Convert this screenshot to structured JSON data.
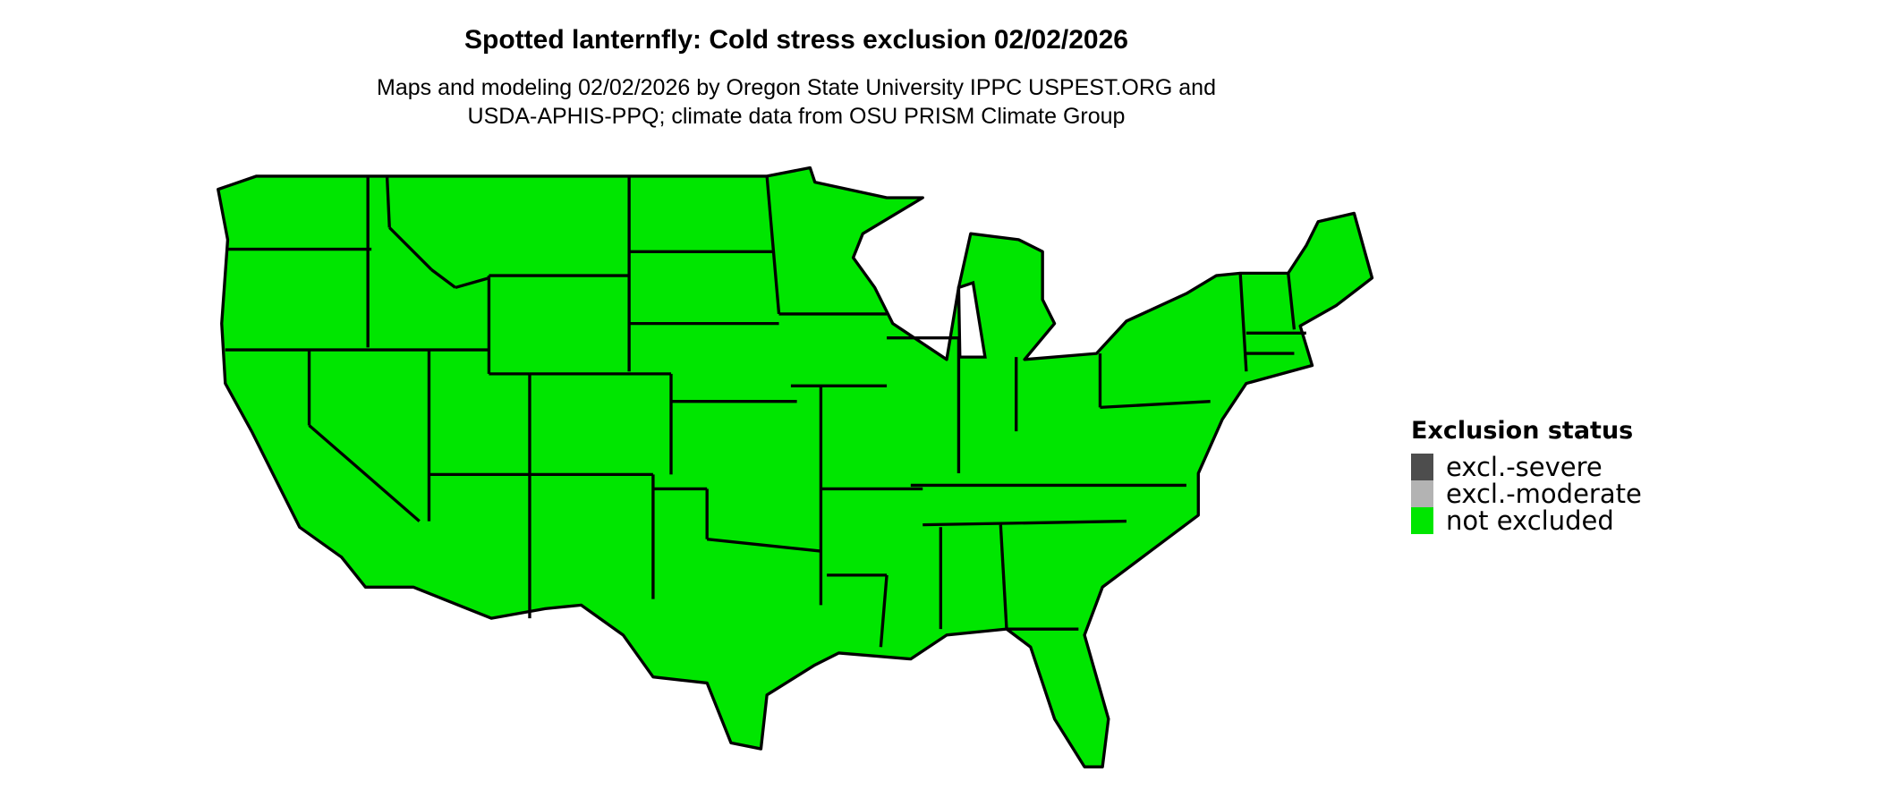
{
  "title": "Spotted lanternfly: Cold stress exclusion 02/02/2026",
  "subtitle_lines": [
    "Maps and modeling 02/02/2026 by Oregon State University IPPC USPEST.ORG and",
    "USDA-APHIS-PPQ; climate data from OSU PRISM Climate Group"
  ],
  "map": {
    "region": "Contiguous United States",
    "fill_color": "#00e600",
    "border_color": "#000000"
  },
  "legend": {
    "title": "Exclusion status",
    "items": [
      {
        "label": "excl.-severe",
        "color": "#4d4d4d"
      },
      {
        "label": "excl.-moderate",
        "color": "#b3b3b3"
      },
      {
        "label": "not excluded",
        "color": "#00e600"
      }
    ]
  }
}
